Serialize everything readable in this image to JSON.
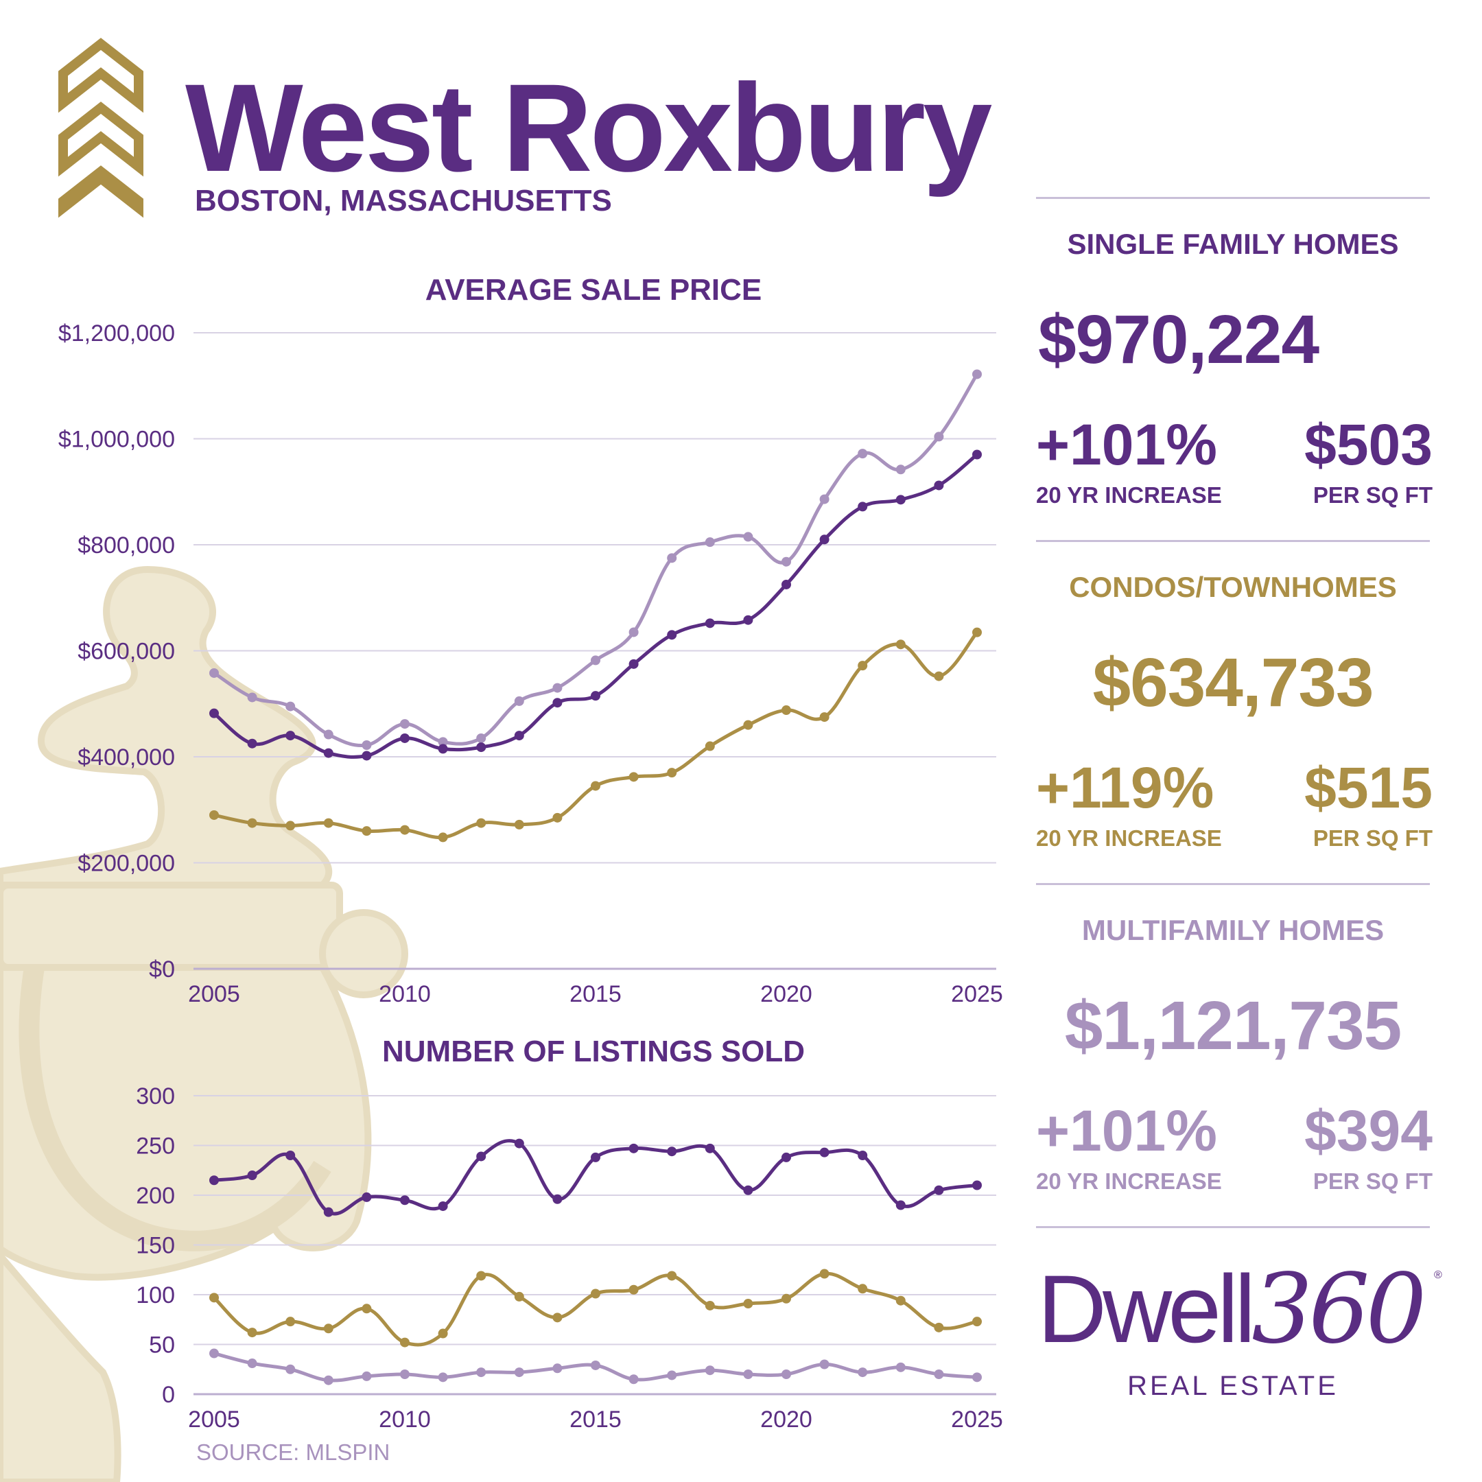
{
  "header": {
    "title": "West Roxbury",
    "subtitle": "BOSTON, MASSACHUSETTS"
  },
  "colors": {
    "purple": "#5a2d82",
    "gold": "#ab8f46",
    "lavender": "#a892bd",
    "grid": "#d8d2e4",
    "knocker": "#efe8d2"
  },
  "icons": {
    "chevrons": "triple-chevron-up-icon",
    "background": "door-knocker-icon"
  },
  "chart_data": [
    {
      "type": "line",
      "title": "AVERAGE SALE PRICE",
      "x": [
        2005,
        2006,
        2007,
        2008,
        2009,
        2010,
        2011,
        2012,
        2013,
        2014,
        2015,
        2016,
        2017,
        2018,
        2019,
        2020,
        2021,
        2022,
        2023,
        2024,
        2025
      ],
      "x_ticks": [
        "2005",
        "2010",
        "2015",
        "2020",
        "2025"
      ],
      "y_ticks": [
        "$0",
        "$200,000",
        "$400,000",
        "$600,000",
        "$800,000",
        "$1,000,000",
        "$1,200,000"
      ],
      "ylim": [
        0,
        1200000
      ],
      "grid": true,
      "series": [
        {
          "color_key": "lavender",
          "values": [
            558000,
            512000,
            495000,
            442000,
            422000,
            462000,
            428000,
            435000,
            505000,
            530000,
            582000,
            635000,
            775000,
            805000,
            815000,
            768000,
            886000,
            972000,
            942000,
            1004000,
            1121735
          ]
        },
        {
          "color_key": "purple",
          "values": [
            482000,
            425000,
            440000,
            407000,
            402000,
            435000,
            415000,
            418000,
            440000,
            502000,
            515000,
            575000,
            630000,
            652000,
            658000,
            725000,
            810000,
            872000,
            885000,
            912000,
            970224
          ]
        },
        {
          "color_key": "gold",
          "values": [
            290000,
            275000,
            270000,
            275000,
            260000,
            262000,
            248000,
            275000,
            272000,
            285000,
            345000,
            362000,
            370000,
            420000,
            460000,
            488000,
            475000,
            572000,
            612000,
            552000,
            634733
          ]
        }
      ]
    },
    {
      "type": "line",
      "title": "NUMBER OF LISTINGS SOLD",
      "x": [
        2005,
        2006,
        2007,
        2008,
        2009,
        2010,
        2011,
        2012,
        2013,
        2014,
        2015,
        2016,
        2017,
        2018,
        2019,
        2020,
        2021,
        2022,
        2023,
        2024,
        2025
      ],
      "x_ticks": [
        "2005",
        "2010",
        "2015",
        "2020",
        "2025"
      ],
      "y_ticks": [
        "0",
        "50",
        "100",
        "150",
        "200",
        "250",
        "300"
      ],
      "ylim": [
        0,
        300
      ],
      "grid": true,
      "series": [
        {
          "color_key": "purple",
          "values": [
            215,
            220,
            240,
            183,
            198,
            195,
            189,
            239,
            252,
            196,
            238,
            247,
            244,
            247,
            205,
            238,
            243,
            240,
            190,
            205,
            210
          ]
        },
        {
          "color_key": "gold",
          "values": [
            97,
            62,
            73,
            66,
            86,
            52,
            61,
            119,
            98,
            77,
            101,
            105,
            119,
            89,
            91,
            96,
            121,
            106,
            94,
            67,
            73
          ]
        },
        {
          "color_key": "lavender",
          "values": [
            41,
            31,
            25,
            14,
            18,
            20,
            17,
            22,
            22,
            26,
            29,
            15,
            19,
            24,
            20,
            20,
            30,
            22,
            27,
            20,
            17
          ]
        }
      ]
    }
  ],
  "source": "SOURCE: MLSPIN",
  "panels": [
    {
      "title": "SINGLE FAMILY HOMES",
      "price": "$970,224",
      "increase": "+101%",
      "increase_label": "20 YR INCREASE",
      "sqft": "$503",
      "sqft_label": "PER SQ FT",
      "color_key": "purple"
    },
    {
      "title": "CONDOS/TOWNHOMES",
      "price": "$634,733",
      "increase": "+119%",
      "increase_label": "20 YR INCREASE",
      "sqft": "$515",
      "sqft_label": "PER SQ FT",
      "color_key": "gold"
    },
    {
      "title": "MULTIFAMILY HOMES",
      "price": "$1,121,735",
      "increase": "+101%",
      "increase_label": "20 YR INCREASE",
      "sqft": "$394",
      "sqft_label": "PER SQ FT",
      "color_key": "lavender"
    }
  ],
  "logo": {
    "word": "Dwell",
    "number": "360",
    "reg": "®",
    "sub": "REAL ESTATE"
  }
}
